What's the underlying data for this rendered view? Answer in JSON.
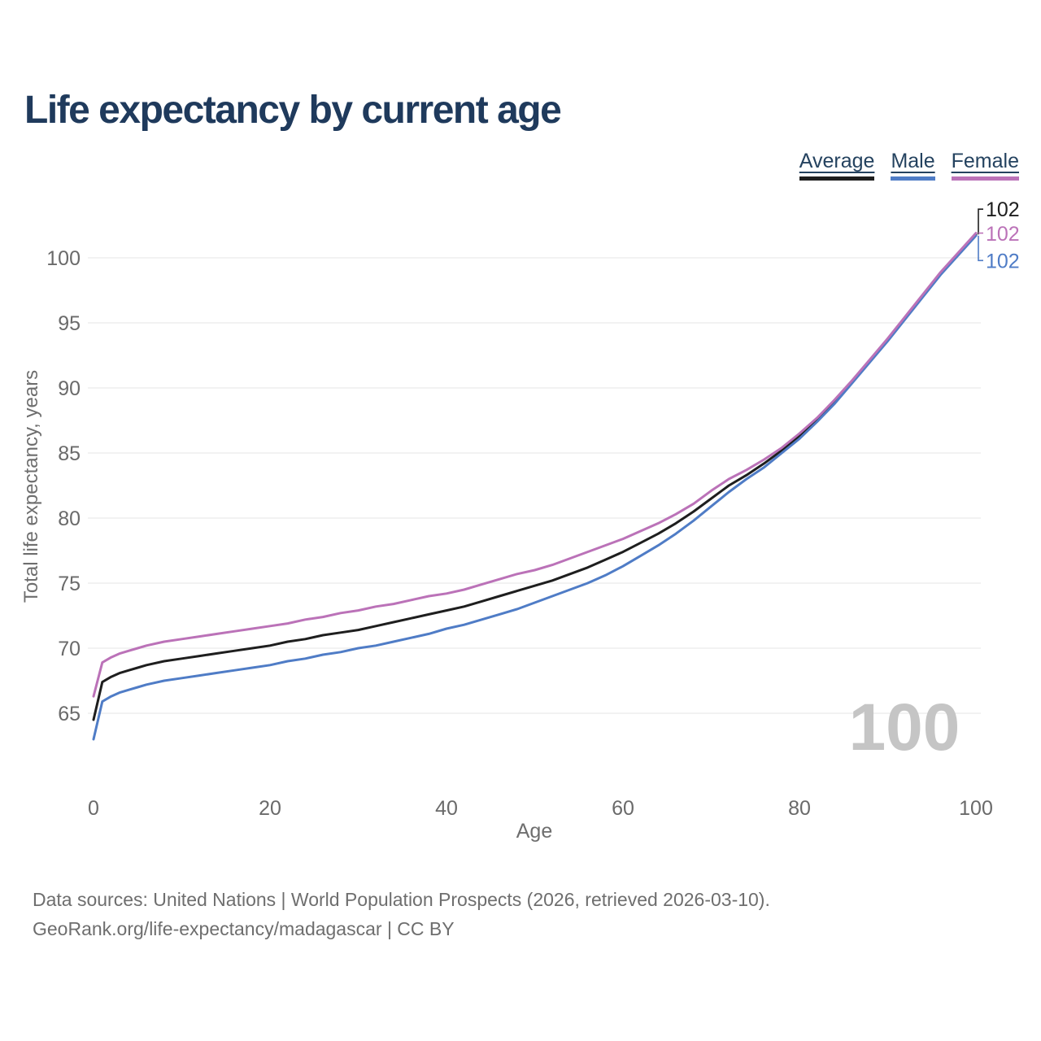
{
  "title": "Life expectancy by current age",
  "legend": {
    "items": [
      {
        "label": "Average",
        "color": "#1e1e1e"
      },
      {
        "label": "Male",
        "color": "#4f7cc6"
      },
      {
        "label": "Female",
        "color": "#bb72b8"
      }
    ]
  },
  "watermark": "100",
  "footer": {
    "line1": "Data sources: United Nations | World Population Prospects (2026, retrieved 2026-03-10).",
    "line2": "GeoRank.org/life-expectancy/madagascar | CC BY"
  },
  "colors": {
    "title_text": "#1f3a5c",
    "legend_text": "#24425f",
    "tick_text": "#6a6a6a",
    "axis_label_text": "#6e6e6e",
    "gridline": "#e9e9e9",
    "watermark": "#c5c5c5"
  },
  "chart_data": {
    "type": "line",
    "title": "Life expectancy by current age",
    "xlabel": "Age",
    "ylabel": "Total life expectancy, years",
    "xlim": [
      0,
      100
    ],
    "ylim": [
      62,
      103
    ],
    "x_ticks": [
      0,
      20,
      40,
      60,
      80,
      100
    ],
    "y_ticks": [
      65,
      70,
      75,
      80,
      85,
      90,
      95,
      100
    ],
    "grid": "horizontal-only",
    "legend_position": "top-right",
    "x": [
      0,
      1,
      2,
      3,
      4,
      5,
      6,
      8,
      10,
      12,
      14,
      16,
      18,
      20,
      22,
      24,
      26,
      28,
      30,
      32,
      34,
      36,
      38,
      40,
      42,
      44,
      46,
      48,
      50,
      52,
      54,
      56,
      58,
      60,
      62,
      64,
      66,
      68,
      70,
      72,
      74,
      76,
      78,
      80,
      82,
      84,
      86,
      88,
      90,
      92,
      94,
      96,
      98,
      100
    ],
    "series": [
      {
        "name": "Average",
        "color": "#1e1e1e",
        "end_label": "102",
        "values": [
          64.5,
          67.4,
          67.8,
          68.1,
          68.3,
          68.5,
          68.7,
          69.0,
          69.2,
          69.4,
          69.6,
          69.8,
          70.0,
          70.2,
          70.5,
          70.7,
          71.0,
          71.2,
          71.4,
          71.7,
          72.0,
          72.3,
          72.6,
          72.9,
          73.2,
          73.6,
          74.0,
          74.4,
          74.8,
          75.2,
          75.7,
          76.2,
          76.8,
          77.4,
          78.1,
          78.8,
          79.6,
          80.5,
          81.5,
          82.5,
          83.3,
          84.2,
          85.2,
          86.3,
          87.6,
          89.0,
          90.5,
          92.1,
          93.7,
          95.4,
          97.1,
          98.8,
          100.3,
          101.8
        ]
      },
      {
        "name": "Male",
        "color": "#4f7cc6",
        "end_label": "102",
        "values": [
          63.0,
          65.9,
          66.3,
          66.6,
          66.8,
          67.0,
          67.2,
          67.5,
          67.7,
          67.9,
          68.1,
          68.3,
          68.5,
          68.7,
          69.0,
          69.2,
          69.5,
          69.7,
          70.0,
          70.2,
          70.5,
          70.8,
          71.1,
          71.5,
          71.8,
          72.2,
          72.6,
          73.0,
          73.5,
          74.0,
          74.5,
          75.0,
          75.6,
          76.3,
          77.1,
          77.9,
          78.8,
          79.8,
          80.9,
          82.0,
          83.0,
          83.9,
          85.0,
          86.1,
          87.4,
          88.8,
          90.4,
          92.0,
          93.6,
          95.3,
          97.0,
          98.7,
          100.2,
          101.7
        ]
      },
      {
        "name": "Female",
        "color": "#bb72b8",
        "end_label": "102",
        "values": [
          66.3,
          68.9,
          69.3,
          69.6,
          69.8,
          70.0,
          70.2,
          70.5,
          70.7,
          70.9,
          71.1,
          71.3,
          71.5,
          71.7,
          71.9,
          72.2,
          72.4,
          72.7,
          72.9,
          73.2,
          73.4,
          73.7,
          74.0,
          74.2,
          74.5,
          74.9,
          75.3,
          75.7,
          76.0,
          76.4,
          76.9,
          77.4,
          77.9,
          78.4,
          79.0,
          79.6,
          80.3,
          81.1,
          82.1,
          83.0,
          83.7,
          84.5,
          85.4,
          86.5,
          87.7,
          89.1,
          90.6,
          92.2,
          93.8,
          95.5,
          97.2,
          98.9,
          100.4,
          101.9
        ]
      }
    ]
  }
}
